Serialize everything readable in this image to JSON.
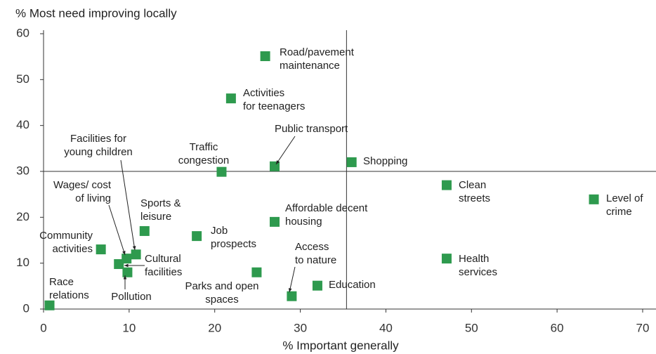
{
  "chart_data": {
    "type": "scatter",
    "y_axis_title": "% Most need improving locally",
    "x_axis_title": "% Important generally",
    "xlim": [
      0,
      70
    ],
    "xticks": [
      0,
      10,
      20,
      30,
      40,
      50,
      60,
      70
    ],
    "ylim": [
      0,
      60
    ],
    "yticks": [
      0,
      10,
      20,
      30,
      40,
      50,
      60
    ],
    "vline": 35.4,
    "hline": 30,
    "color": "#2e9a4e",
    "labels": [
      [
        "Road/pavement",
        "maintenance"
      ],
      [
        "Activities",
        "for teenagers"
      ],
      [
        "Public transport"
      ],
      [
        "Shopping"
      ],
      [
        "Traffic",
        "congestion"
      ],
      [
        "Clean",
        "streets"
      ],
      [
        "Level of",
        "crime"
      ],
      [
        "Affordable decent",
        "housing"
      ],
      [
        "Sports &",
        "leisure"
      ],
      [
        "Job",
        "prospects"
      ],
      [
        "Community",
        "activities"
      ],
      [
        "Facilities for",
        "young children"
      ],
      [
        "Wages/ cost",
        "of living"
      ],
      [
        "Cultural",
        "facilities"
      ],
      [
        "Pollution"
      ],
      [
        "Health",
        "services"
      ],
      [
        "Parks and open",
        "spaces"
      ],
      [
        "Education"
      ],
      [
        "Access",
        "to nature"
      ],
      [
        "Race",
        "relations"
      ]
    ],
    "x": [
      25.9,
      21.9,
      27.0,
      36.0,
      20.8,
      47.1,
      64.3,
      27.0,
      11.8,
      17.9,
      6.7,
      10.8,
      9.7,
      8.8,
      9.8,
      47.1,
      24.9,
      32.0,
      29.0,
      0.7
    ],
    "y": [
      55.1,
      45.9,
      31.1,
      32.0,
      29.9,
      27.0,
      23.9,
      19.0,
      17.0,
      15.9,
      13.0,
      11.9,
      11.0,
      9.8,
      8.0,
      11.0,
      8.0,
      5.1,
      2.8,
      0.8
    ]
  }
}
